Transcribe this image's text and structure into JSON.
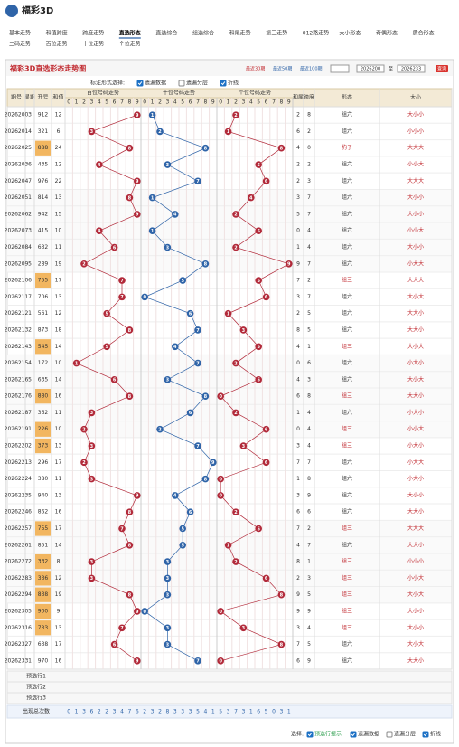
{
  "header": {
    "logo": "福彩3D",
    "nav": [
      "基本走势",
      "和值跨度",
      "跨度走势",
      "直选形态",
      "直选综合",
      "组选综合",
      "和尾走势",
      "振三走势",
      "012路走势",
      "大小形态",
      "奇偶形态",
      "质合形态",
      "二码走势",
      "百位走势",
      "十位走势",
      "个位走势"
    ],
    "active_nav": 3
  },
  "panel": {
    "title": "福彩3D直选形态走势图",
    "quick": [
      "最近30期",
      "最近50期",
      "最近100期"
    ],
    "from": "2026200",
    "to_label": "至",
    "to": "2026233",
    "button": "查询"
  },
  "options_label": "标注形式选择:",
  "options": [
    {
      "label": "遗漏数据",
      "checked": true
    },
    {
      "label": "遗漏分层",
      "checked": false
    },
    {
      "label": "折线",
      "checked": true
    }
  ],
  "table": {
    "headers": [
      "期号",
      "星期",
      "开号",
      "和值"
    ],
    "zones": [
      "百位号码走势",
      "十位号码走势",
      "个位号码走势"
    ],
    "digit_labels": [
      0,
      1,
      2,
      3,
      4,
      5,
      6,
      7,
      8,
      9
    ],
    "tail_headers": [
      "和尾",
      "跨度",
      "形态",
      "大小"
    ],
    "rows": [
      {
        "issue": "2026200",
        "week": 3,
        "number": "912",
        "digits": [
          9,
          1,
          2
        ],
        "sum": 12,
        "tail": 2,
        "span": 8,
        "form": "组六",
        "size": "大小小"
      },
      {
        "issue": "2026201",
        "week": 4,
        "number": "321",
        "digits": [
          3,
          2,
          1
        ],
        "sum": 6,
        "tail": 6,
        "span": 2,
        "form": "组六",
        "size": "小小小"
      },
      {
        "issue": "2026202",
        "week": 5,
        "number": "888",
        "digits": [
          8,
          8,
          8
        ],
        "sum": 24,
        "tail": 4,
        "span": 0,
        "form": "豹子",
        "size": "大大大"
      },
      {
        "issue": "2026203",
        "week": 6,
        "number": "435",
        "digits": [
          4,
          3,
          5
        ],
        "sum": 12,
        "tail": 2,
        "span": 2,
        "form": "组六",
        "size": "小小大"
      },
      {
        "issue": "2026204",
        "week": 7,
        "number": "976",
        "digits": [
          9,
          7,
          6
        ],
        "sum": 22,
        "tail": 2,
        "span": 3,
        "form": "组六",
        "size": "大大大"
      },
      {
        "issue": "2026205",
        "week": 1,
        "number": "814",
        "digits": [
          8,
          1,
          4
        ],
        "sum": 13,
        "tail": 3,
        "span": 7,
        "form": "组六",
        "size": "大小小"
      },
      {
        "issue": "2026206",
        "week": 2,
        "number": "942",
        "digits": [
          9,
          4,
          2
        ],
        "sum": 15,
        "tail": 5,
        "span": 7,
        "form": "组六",
        "size": "大小小"
      },
      {
        "issue": "2026207",
        "week": 3,
        "number": "415",
        "digits": [
          4,
          1,
          5
        ],
        "sum": 10,
        "tail": 0,
        "span": 4,
        "form": "组六",
        "size": "小小大"
      },
      {
        "issue": "2026208",
        "week": 4,
        "number": "632",
        "digits": [
          6,
          3,
          2
        ],
        "sum": 11,
        "tail": 1,
        "span": 4,
        "form": "组六",
        "size": "大小小"
      },
      {
        "issue": "2026209",
        "week": 5,
        "number": "289",
        "digits": [
          2,
          8,
          9
        ],
        "sum": 19,
        "tail": 9,
        "span": 7,
        "form": "组六",
        "size": "小大大"
      },
      {
        "issue": "2026210",
        "week": 6,
        "number": "755",
        "digits": [
          7,
          5,
          5
        ],
        "sum": 17,
        "tail": 7,
        "span": 2,
        "form": "组三",
        "size": "大大大"
      },
      {
        "issue": "2026211",
        "week": 7,
        "number": "706",
        "digits": [
          7,
          0,
          6
        ],
        "sum": 13,
        "tail": 3,
        "span": 7,
        "form": "组六",
        "size": "大小大"
      },
      {
        "issue": "2026212",
        "week": 1,
        "number": "561",
        "digits": [
          5,
          6,
          1
        ],
        "sum": 12,
        "tail": 2,
        "span": 5,
        "form": "组六",
        "size": "大大小"
      },
      {
        "issue": "2026213",
        "week": 2,
        "number": "873",
        "digits": [
          8,
          7,
          3
        ],
        "sum": 18,
        "tail": 8,
        "span": 5,
        "form": "组六",
        "size": "大大小"
      },
      {
        "issue": "2026214",
        "week": 3,
        "number": "545",
        "digits": [
          5,
          4,
          5
        ],
        "sum": 14,
        "tail": 4,
        "span": 1,
        "form": "组三",
        "size": "大小大"
      },
      {
        "issue": "2026215",
        "week": 4,
        "number": "172",
        "digits": [
          1,
          7,
          2
        ],
        "sum": 10,
        "tail": 0,
        "span": 6,
        "form": "组六",
        "size": "小大小"
      },
      {
        "issue": "2026216",
        "week": 5,
        "number": "635",
        "digits": [
          6,
          3,
          5
        ],
        "sum": 14,
        "tail": 4,
        "span": 3,
        "form": "组六",
        "size": "大小大"
      },
      {
        "issue": "2026217",
        "week": 6,
        "number": "880",
        "digits": [
          8,
          8,
          0
        ],
        "sum": 16,
        "tail": 6,
        "span": 8,
        "form": "组三",
        "size": "大大小"
      },
      {
        "issue": "2026218",
        "week": 7,
        "number": "362",
        "digits": [
          3,
          6,
          2
        ],
        "sum": 11,
        "tail": 1,
        "span": 4,
        "form": "组六",
        "size": "小大小"
      },
      {
        "issue": "2026219",
        "week": 1,
        "number": "226",
        "digits": [
          2,
          2,
          6
        ],
        "sum": 10,
        "tail": 0,
        "span": 4,
        "form": "组三",
        "size": "小小大"
      },
      {
        "issue": "2026220",
        "week": 2,
        "number": "373",
        "digits": [
          3,
          7,
          3
        ],
        "sum": 13,
        "tail": 3,
        "span": 4,
        "form": "组三",
        "size": "小大小"
      },
      {
        "issue": "2026221",
        "week": 3,
        "number": "296",
        "digits": [
          2,
          9,
          6
        ],
        "sum": 17,
        "tail": 7,
        "span": 7,
        "form": "组六",
        "size": "小大大"
      },
      {
        "issue": "2026222",
        "week": 4,
        "number": "380",
        "digits": [
          3,
          8,
          0
        ],
        "sum": 11,
        "tail": 1,
        "span": 8,
        "form": "组六",
        "size": "小大小"
      },
      {
        "issue": "2026223",
        "week": 5,
        "number": "940",
        "digits": [
          9,
          4,
          0
        ],
        "sum": 13,
        "tail": 3,
        "span": 9,
        "form": "组六",
        "size": "大小小"
      },
      {
        "issue": "2026224",
        "week": 6,
        "number": "862",
        "digits": [
          8,
          6,
          2
        ],
        "sum": 16,
        "tail": 6,
        "span": 6,
        "form": "组六",
        "size": "大大小"
      },
      {
        "issue": "2026225",
        "week": 7,
        "number": "755",
        "digits": [
          7,
          5,
          5
        ],
        "sum": 17,
        "tail": 7,
        "span": 2,
        "form": "组三",
        "size": "大大大"
      },
      {
        "issue": "2026226",
        "week": 1,
        "number": "851",
        "digits": [
          8,
          5,
          1
        ],
        "sum": 14,
        "tail": 4,
        "span": 7,
        "form": "组六",
        "size": "大大小"
      },
      {
        "issue": "2026227",
        "week": 2,
        "number": "332",
        "digits": [
          3,
          3,
          2
        ],
        "sum": 8,
        "tail": 8,
        "span": 1,
        "form": "组三",
        "size": "小小小"
      },
      {
        "issue": "2026228",
        "week": 3,
        "number": "336",
        "digits": [
          3,
          3,
          6
        ],
        "sum": 12,
        "tail": 2,
        "span": 3,
        "form": "组三",
        "size": "小小大"
      },
      {
        "issue": "2026229",
        "week": 4,
        "number": "838",
        "digits": [
          8,
          3,
          8
        ],
        "sum": 19,
        "tail": 9,
        "span": 5,
        "form": "组三",
        "size": "大小大"
      },
      {
        "issue": "2026230",
        "week": 5,
        "number": "900",
        "digits": [
          9,
          0,
          0
        ],
        "sum": 9,
        "tail": 9,
        "span": 9,
        "form": "组三",
        "size": "大小小"
      },
      {
        "issue": "2026231",
        "week": 6,
        "number": "733",
        "digits": [
          7,
          3,
          3
        ],
        "sum": 13,
        "tail": 3,
        "span": 4,
        "form": "组三",
        "size": "大小小"
      },
      {
        "issue": "2026232",
        "week": 7,
        "number": "638",
        "digits": [
          6,
          3,
          8
        ],
        "sum": 17,
        "tail": 7,
        "span": 5,
        "form": "组六",
        "size": "大小大"
      },
      {
        "issue": "2026233",
        "week": 1,
        "number": "970",
        "digits": [
          9,
          7,
          0
        ],
        "sum": 16,
        "tail": 6,
        "span": 9,
        "form": "组六",
        "size": "大大小"
      }
    ],
    "preselect": [
      "预选行1",
      "预选行2",
      "预选行3"
    ],
    "stats": [
      {
        "label": "出现总次数",
        "values": [
          [
            0,
            1,
            3,
            6,
            2,
            2,
            3,
            4,
            7,
            6
          ],
          [
            2,
            3,
            2,
            8,
            3,
            3,
            3,
            5,
            4,
            1
          ],
          [
            5,
            3,
            7,
            3,
            1,
            6,
            5,
            0,
            3,
            1
          ]
        ]
      }
    ]
  },
  "footer": {
    "label": "选择:",
    "options": [
      {
        "label": "预选行提示",
        "checked": true
      },
      {
        "label": "遗漏数据",
        "checked": true
      },
      {
        "label": "遗漏分层",
        "checked": false
      },
      {
        "label": "折线",
        "checked": true
      }
    ]
  },
  "colors": {
    "zones": [
      "#b22a3a",
      "#2f64a8",
      "#b22a3a"
    ],
    "highlight": "#f2b660",
    "common": "#1c70c4"
  }
}
